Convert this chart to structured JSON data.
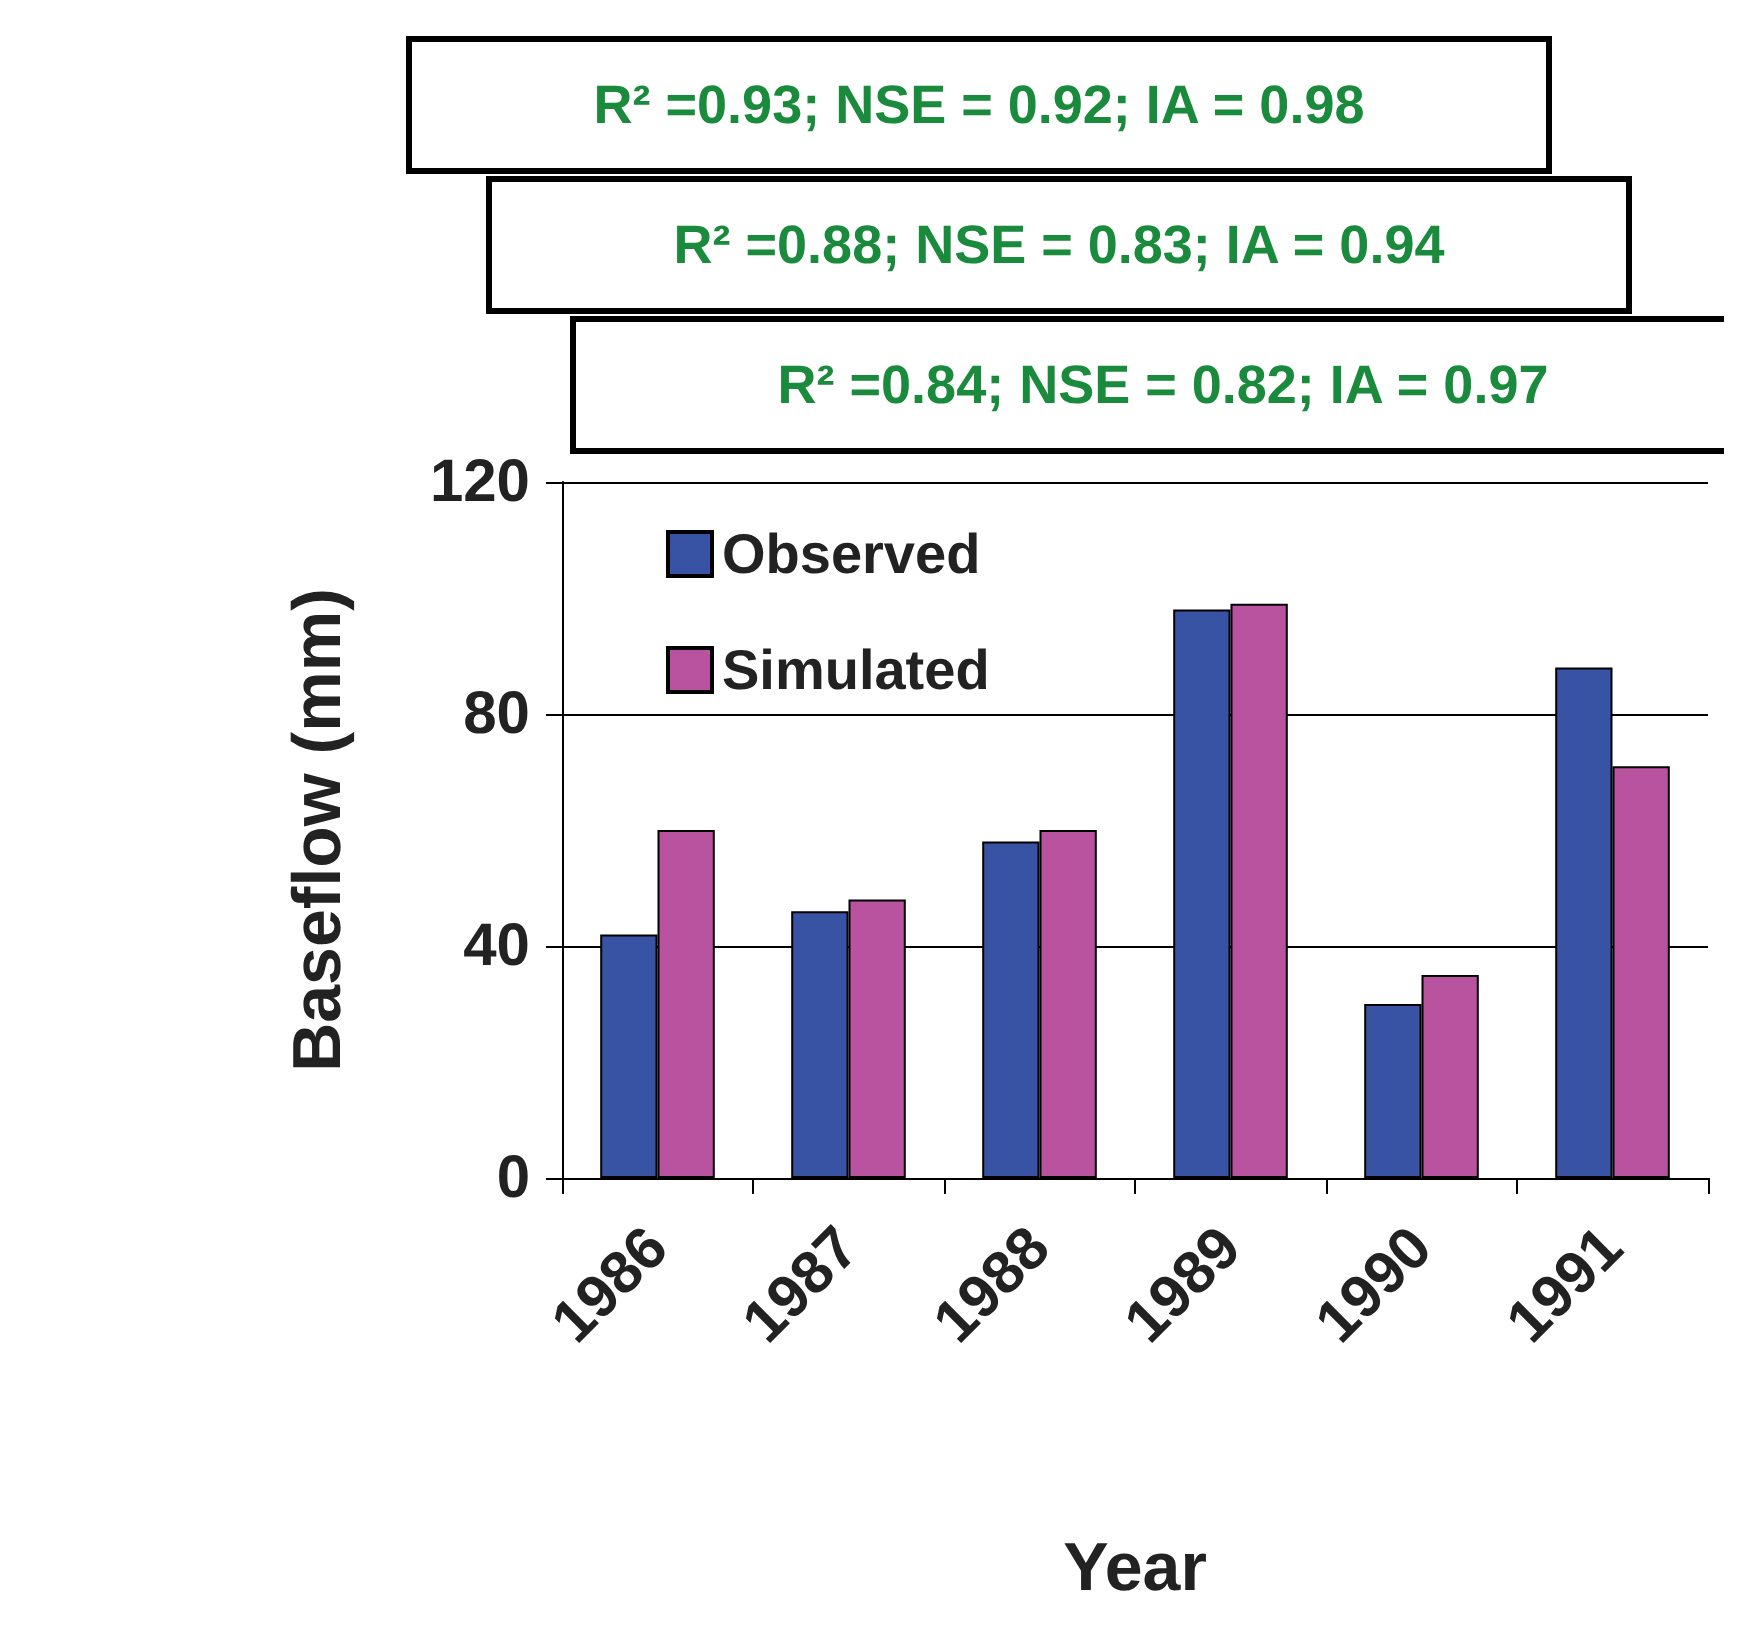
{
  "chart_data": {
    "type": "bar",
    "xlabel": "Year",
    "ylabel": "Baseflow (mm)",
    "categories": [
      "1986",
      "1987",
      "1988",
      "1989",
      "1990",
      "1991"
    ],
    "series": [
      {
        "name": "Observed",
        "color": "#3953a4",
        "values": [
          42,
          46,
          58,
          98,
          30,
          88
        ]
      },
      {
        "name": "Simulated",
        "color": "#b9529f",
        "values": [
          60,
          48,
          60,
          99,
          35,
          71
        ]
      }
    ],
    "ylim": [
      0,
      120
    ],
    "yticks": [
      0,
      40,
      80,
      120
    ],
    "grid": "y",
    "legend": "top left",
    "annotations": [
      "R² =0.93; NSE = 0.92; IA = 0.98",
      "R² =0.88; NSE = 0.83; IA = 0.94",
      "R² =0.84; NSE = 0.82; IA = 0.97"
    ]
  }
}
